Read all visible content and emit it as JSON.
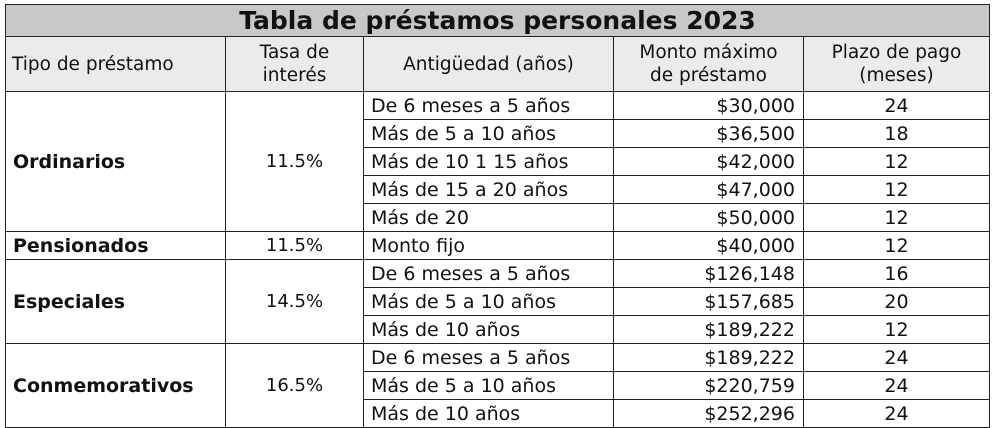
{
  "title": "Tabla de préstamos personales 2023",
  "headers": {
    "tipo": "Tipo de préstamo",
    "tasa_line1": "Tasa de",
    "tasa_line2": "interés",
    "antiguedad": "Antigüedad (años)",
    "monto_line1": "Monto máximo",
    "monto_line2": "de préstamo",
    "plazo_line1": "Plazo de pago",
    "plazo_line2": "(meses)"
  },
  "groups": [
    {
      "tipo": "Ordinarios",
      "tasa": "11.5%",
      "rows": [
        {
          "antiguedad": "De 6 meses a 5 años",
          "monto": "$30,000",
          "plazo": "24"
        },
        {
          "antiguedad": "Más de 5 a 10 años",
          "monto": "$36,500",
          "plazo": "18"
        },
        {
          "antiguedad": "Más de 10 1 15 años",
          "monto": "$42,000",
          "plazo": "12"
        },
        {
          "antiguedad": "Más de 15 a 20 años",
          "monto": "$47,000",
          "plazo": "12"
        },
        {
          "antiguedad": "Más de 20",
          "monto": "$50,000",
          "plazo": "12"
        }
      ]
    },
    {
      "tipo": "Pensionados",
      "tasa": "11.5%",
      "rows": [
        {
          "antiguedad": "Monto fijo",
          "monto": "$40,000",
          "plazo": "12"
        }
      ]
    },
    {
      "tipo": "Especiales",
      "tasa": "14.5%",
      "rows": [
        {
          "antiguedad": "De 6 meses a 5 años",
          "monto": "$126,148",
          "plazo": "16"
        },
        {
          "antiguedad": "Más de 5 a 10 años",
          "monto": "$157,685",
          "plazo": "20"
        },
        {
          "antiguedad": "Más de 10 años",
          "monto": "$189,222",
          "plazo": "12"
        }
      ]
    },
    {
      "tipo": "Conmemorativos",
      "tasa": "16.5%",
      "rows": [
        {
          "antiguedad": "De 6 meses a 5 años",
          "monto": "$189,222",
          "plazo": "24"
        },
        {
          "antiguedad": "Más de 5 a 10 años",
          "monto": "$220,759",
          "plazo": "24"
        },
        {
          "antiguedad": "Más de 10 años",
          "monto": "$252,296",
          "plazo": "24"
        }
      ]
    }
  ]
}
